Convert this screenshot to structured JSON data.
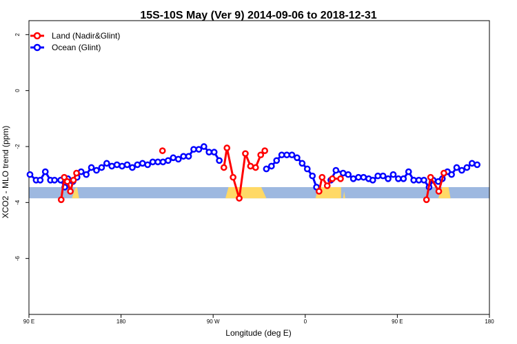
{
  "chart_data": {
    "type": "line",
    "title": "15S-10S May (Ver 9)   2014-09-06 to 2018-12-31",
    "xlabel": "Longitude (deg E)",
    "ylabel": "XCO2 - MLO trend (ppm)",
    "xlim": [
      90,
      540
    ],
    "ylim": [
      -8,
      2.5
    ],
    "x_ticks": [
      {
        "value": 90,
        "label": "90 E"
      },
      {
        "value": 180,
        "label": "180"
      },
      {
        "value": 270,
        "label": "90 W"
      },
      {
        "value": 360,
        "label": "0"
      },
      {
        "value": 450,
        "label": "90 E"
      },
      {
        "value": 540,
        "label": "180"
      }
    ],
    "y_ticks": [
      {
        "value": 2,
        "label": "2"
      },
      {
        "value": 0,
        "label": "0"
      },
      {
        "value": -2,
        "label": "-2"
      },
      {
        "value": -4,
        "label": "-4"
      },
      {
        "value": -6,
        "label": "-6"
      }
    ],
    "legend_position": "top-left",
    "colors": {
      "land": "#ff0000",
      "ocean": "#0000ff",
      "ocean_band": "#9db8e0",
      "land_band": "#ffd966"
    },
    "series": [
      {
        "name": "Land (Nadir&Glint)",
        "color": "#ff0000",
        "segments": [
          [
            [
              121.5,
              -3.9
            ],
            [
              124.5,
              -3.1
            ],
            [
              127.5,
              -3.25
            ],
            [
              130.5,
              -3.6
            ],
            [
              133.5,
              -3.2
            ],
            [
              136.5,
              -2.95
            ]
          ],
          [
            [
              220.5,
              -2.15
            ]
          ],
          [
            [
              280.5,
              -2.75
            ],
            [
              283.5,
              -2.05
            ],
            [
              289.5,
              -3.1
            ],
            [
              295.5,
              -3.85
            ],
            [
              301.5,
              -2.25
            ],
            [
              306.5,
              -2.7
            ],
            [
              311.5,
              -2.75
            ],
            [
              316.5,
              -2.3
            ],
            [
              320.5,
              -2.15
            ]
          ],
          [
            [
              373.5,
              -3.6
            ],
            [
              376.5,
              -3.1
            ],
            [
              381.5,
              -3.4
            ],
            [
              386.5,
              -3.15
            ],
            [
              394.5,
              -3.15
            ]
          ],
          [
            [
              478.5,
              -3.9
            ],
            [
              482.5,
              -3.1
            ],
            [
              490.5,
              -3.6
            ],
            [
              495.5,
              -2.95
            ]
          ]
        ]
      },
      {
        "name": "Ocean (Glint)",
        "color": "#0000ff",
        "segments": [
          [
            [
              91,
              -3.0
            ],
            [
              97,
              -3.2
            ],
            [
              101,
              -3.2
            ],
            [
              106,
              -2.9
            ],
            [
              111,
              -3.2
            ],
            [
              115,
              -3.2
            ],
            [
              121,
              -3.2
            ],
            [
              125,
              -3.45
            ],
            [
              128,
              -3.15
            ],
            [
              133,
              -3.25
            ],
            [
              137,
              -3.1
            ],
            [
              141,
              -2.9
            ],
            [
              146,
              -3.0
            ],
            [
              151,
              -2.75
            ],
            [
              156,
              -2.85
            ],
            [
              161,
              -2.75
            ],
            [
              166,
              -2.6
            ],
            [
              171,
              -2.7
            ],
            [
              176,
              -2.65
            ],
            [
              181,
              -2.7
            ],
            [
              186,
              -2.65
            ],
            [
              191,
              -2.75
            ],
            [
              196,
              -2.65
            ],
            [
              201,
              -2.6
            ],
            [
              206,
              -2.65
            ],
            [
              211,
              -2.55
            ],
            [
              216,
              -2.55
            ],
            [
              221,
              -2.55
            ],
            [
              226,
              -2.5
            ],
            [
              231,
              -2.4
            ],
            [
              236,
              -2.45
            ],
            [
              241,
              -2.35
            ],
            [
              246,
              -2.35
            ],
            [
              251,
              -2.1
            ],
            [
              256,
              -2.1
            ],
            [
              261,
              -2.0
            ],
            [
              266,
              -2.2
            ],
            [
              271,
              -2.2
            ],
            [
              276,
              -2.5
            ]
          ],
          [
            [
              322,
              -2.8
            ],
            [
              327,
              -2.7
            ],
            [
              332,
              -2.5
            ],
            [
              337,
              -2.3
            ],
            [
              342,
              -2.3
            ],
            [
              347,
              -2.3
            ],
            [
              352,
              -2.4
            ],
            [
              357,
              -2.6
            ],
            [
              362,
              -2.8
            ],
            [
              367,
              -3.05
            ],
            [
              371,
              -3.45
            ]
          ],
          [
            [
              385,
              -3.2
            ],
            [
              390,
              -2.85
            ],
            [
              397,
              -2.95
            ],
            [
              402,
              -3.0
            ],
            [
              407,
              -3.15
            ],
            [
              412,
              -3.1
            ],
            [
              417,
              -3.1
            ],
            [
              422,
              -3.15
            ],
            [
              426,
              -3.2
            ],
            [
              431,
              -3.05
            ],
            [
              436,
              -3.05
            ],
            [
              441,
              -3.15
            ],
            [
              446,
              -3.0
            ],
            [
              451,
              -3.15
            ],
            [
              456,
              -3.15
            ],
            [
              461,
              -2.9
            ],
            [
              466,
              -3.2
            ],
            [
              471,
              -3.2
            ],
            [
              476,
              -3.2
            ],
            [
              481,
              -3.45
            ],
            [
              485,
              -3.2
            ],
            [
              490,
              -3.25
            ],
            [
              494,
              -3.15
            ],
            [
              499,
              -2.9
            ],
            [
              503,
              -3.0
            ],
            [
              508,
              -2.75
            ],
            [
              513,
              -2.85
            ],
            [
              518,
              -2.75
            ],
            [
              523,
              -2.6
            ],
            [
              528,
              -2.65
            ]
          ]
        ]
      }
    ]
  }
}
